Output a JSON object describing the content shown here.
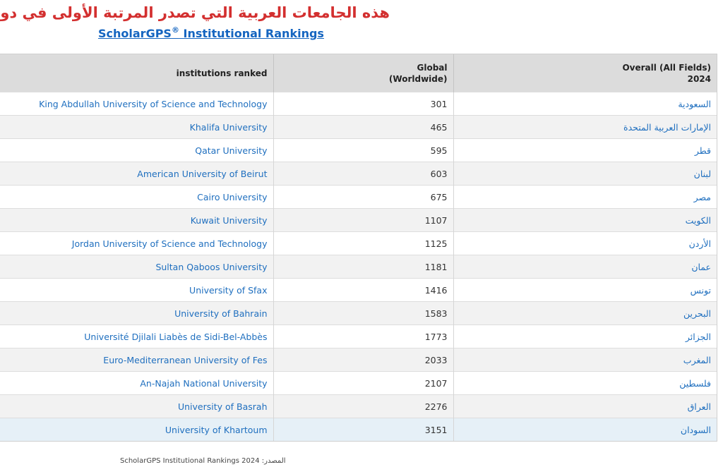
{
  "page": {
    "heading": "هذه الجامعات العربية التي تصدر المرتبة الأولى في دولها:",
    "link_text": "ScholarGPS",
    "link_mark": "®",
    "link_suffix": " Institutional Rankings"
  },
  "table": {
    "headers": {
      "institutions": "institutions ranked",
      "global_line1": "Global",
      "global_line2": "(Worldwide)",
      "overall_line1": "Overall (All Fields)",
      "overall_line2": "2024"
    },
    "rows": [
      {
        "institution": "King Abdullah University of Science and Technology",
        "rank": "301",
        "country": "السعودية"
      },
      {
        "institution": "Khalifa University",
        "rank": "465",
        "country": "الإمارات العربية المتحدة"
      },
      {
        "institution": "Qatar University",
        "rank": "595",
        "country": "قطر"
      },
      {
        "institution": "American University of Beirut",
        "rank": "603",
        "country": "لبنان"
      },
      {
        "institution": "Cairo University",
        "rank": "675",
        "country": "مصر"
      },
      {
        "institution": "Kuwait University",
        "rank": "1107",
        "country": "الكويت"
      },
      {
        "institution": "Jordan University of Science and Technology",
        "rank": "1125",
        "country": "الأردن"
      },
      {
        "institution": "Sultan Qaboos University",
        "rank": "1181",
        "country": "عمان"
      },
      {
        "institution": "University of Sfax",
        "rank": "1416",
        "country": "تونس"
      },
      {
        "institution": "University of Bahrain",
        "rank": "1583",
        "country": "البحرين"
      },
      {
        "institution": "Université Djilali Liabès de Sidi-Bel-Abbès",
        "rank": "1773",
        "country": "الجزائر"
      },
      {
        "institution": "Euro-Mediterranean University of Fes",
        "rank": "2033",
        "country": "المغرب"
      },
      {
        "institution": "An-Najah National University",
        "rank": "2107",
        "country": "فلسطين"
      },
      {
        "institution": "University of Basrah",
        "rank": "2276",
        "country": "العراق"
      },
      {
        "institution": "University of Khartoum",
        "rank": "3151",
        "country": "السودان"
      }
    ]
  },
  "footer": {
    "source_text": "ScholarGPS Institutional Rankings 2024",
    "source_label": "المصدر:"
  },
  "colors": {
    "heading": "#d32f2f",
    "link": "#1565c0",
    "header_bg": "#dcdcdc",
    "row_alt": "#f2f2f2",
    "row_highlight": "#e6f0f7"
  }
}
